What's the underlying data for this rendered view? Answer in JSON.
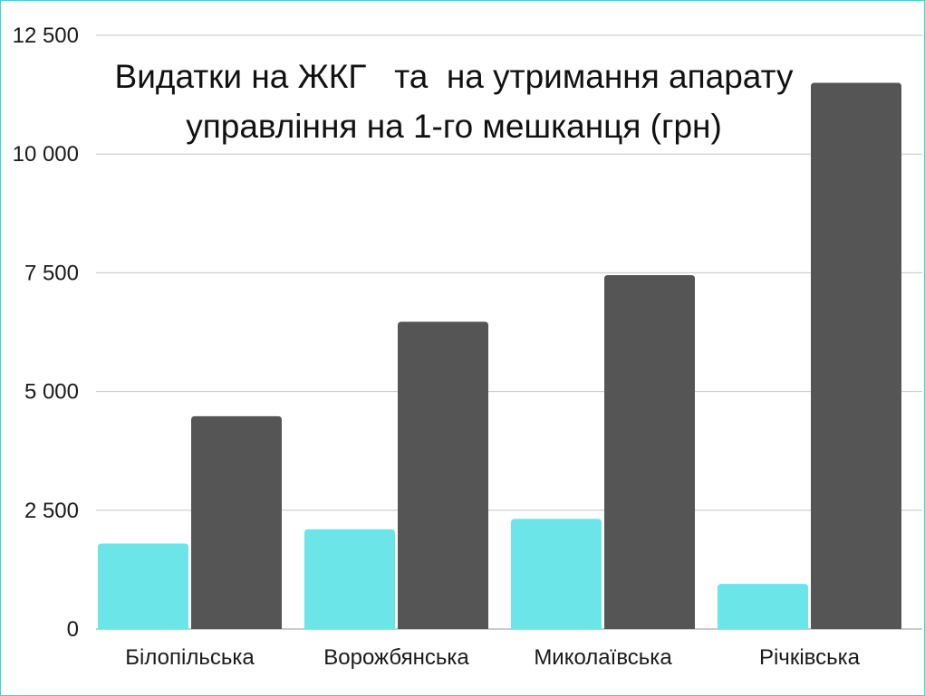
{
  "chart_data": {
    "type": "bar",
    "title_line1": "Видатки на ЖКГ   та  на утримання апарату",
    "title_line2": "управління на 1-го мешканця (грн)",
    "categories": [
      "Білопільська",
      "Ворожбянська",
      "Миколаївська",
      "Річківська"
    ],
    "series": [
      {
        "values": [
          1800,
          2100,
          2320,
          950
        ],
        "color": "#6ce5e8"
      },
      {
        "values": [
          4480,
          6470,
          7450,
          11500
        ],
        "color": "#555555"
      }
    ],
    "ylim": [
      0,
      12500
    ],
    "yticks": [
      0,
      2500,
      5000,
      7500,
      10000,
      12500
    ],
    "ytick_labels": [
      "0",
      "2 500",
      "5 000",
      "7 500",
      "10 000",
      "12 500"
    ],
    "grid": true,
    "legend": "none"
  }
}
